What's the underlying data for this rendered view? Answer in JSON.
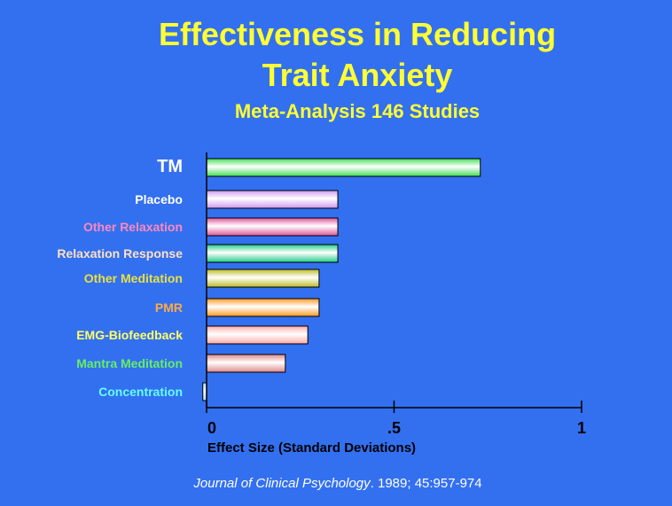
{
  "header": {
    "title_line1": "Effectiveness in Reducing",
    "title_line2": "Trait Anxiety",
    "subtitle": "Meta-Analysis 146 Studies"
  },
  "citation": {
    "journal": "Journal of Clinical Psychology",
    "details": ". 1989; 45:957-974"
  },
  "chart_data": {
    "type": "bar",
    "orientation": "horizontal",
    "title": "Effectiveness in Reducing Trait Anxiety",
    "subtitle": "Meta-Analysis 146 Studies",
    "xlabel": "Effect Size (Standard Deviations)",
    "ylabel": "",
    "xlim": [
      0,
      1
    ],
    "x_ticks": [
      0,
      0.5,
      1
    ],
    "x_tick_labels": [
      "0",
      ".5",
      "1"
    ],
    "grid": false,
    "categories": [
      "TM",
      "Placebo",
      "Other Relaxation",
      "Relaxation Response",
      "Other Meditation",
      "PMR",
      "EMG-Biofeedback",
      "Mantra Meditation",
      "Concentration"
    ],
    "values": [
      0.73,
      0.35,
      0.35,
      0.35,
      0.3,
      0.3,
      0.27,
      0.21,
      -0.01
    ],
    "label_colors": [
      "#ffffff",
      "#ffffff",
      "#ff88bb",
      "#ffe0c0",
      "#e8e040",
      "#ffaa44",
      "#ffff66",
      "#66ee66",
      "#66ffff"
    ],
    "bar_colors": [
      "#44dd55",
      "#cc99ee",
      "#dd5599",
      "#22cc88",
      "#bbbb22",
      "#ff9922",
      "#ffaaaa",
      "#dd8888",
      "#aaddff"
    ]
  }
}
